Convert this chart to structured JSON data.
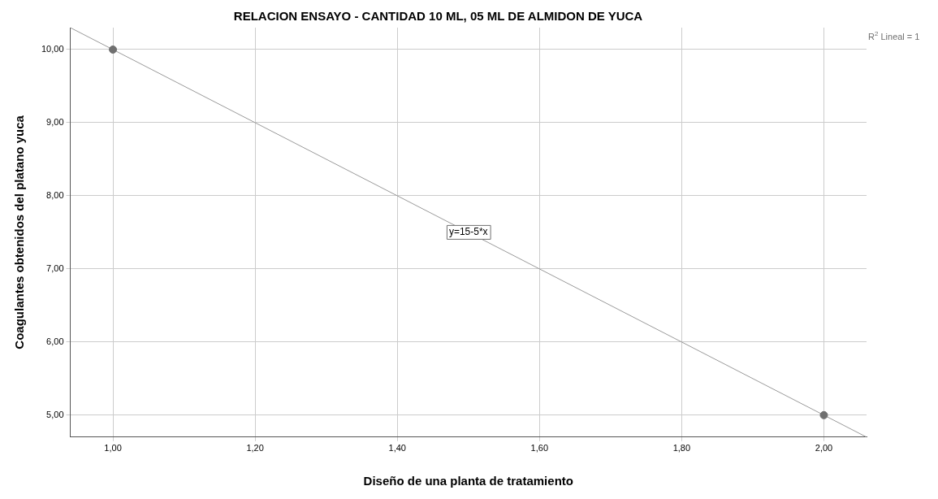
{
  "chart_data": {
    "type": "scatter",
    "title": "RELACION ENSAYO - CANTIDAD 10 ML, 05 ML DE ALMIDON DE YUCA",
    "xlabel": "Diseño de una planta de tratamiento",
    "ylabel": "Coagulantes obtenidos del platano yuca",
    "xlim": [
      0.94,
      2.06
    ],
    "ylim": [
      4.7,
      10.3
    ],
    "xticks": [
      {
        "value": 1,
        "label": "1,00"
      },
      {
        "value": 1.2,
        "label": "1,20"
      },
      {
        "value": 1.4,
        "label": "1,40"
      },
      {
        "value": 1.6,
        "label": "1,60"
      },
      {
        "value": 1.8,
        "label": "1,80"
      },
      {
        "value": 2,
        "label": "2,00"
      }
    ],
    "yticks": [
      {
        "value": 5,
        "label": "5,00"
      },
      {
        "value": 6,
        "label": "6,00"
      },
      {
        "value": 7,
        "label": "7,00"
      },
      {
        "value": 8,
        "label": "8,00"
      },
      {
        "value": 9,
        "label": "9,00"
      },
      {
        "value": 10,
        "label": "10,00"
      }
    ],
    "grid": true,
    "series": [
      {
        "color": "#707070",
        "marker": "circle",
        "x": [
          1,
          2
        ],
        "values": [
          10,
          5
        ]
      },
      {
        "type": "line",
        "color": "#9a9a9a",
        "marker": "none",
        "x": [
          0.94,
          2.06
        ],
        "values": [
          10.3,
          4.7
        ]
      }
    ],
    "annotations": [
      {
        "text": "y=15-5*x",
        "x": 1.5,
        "y": 7.5
      },
      "R$^{2}$ Lineal = 1"
    ]
  }
}
